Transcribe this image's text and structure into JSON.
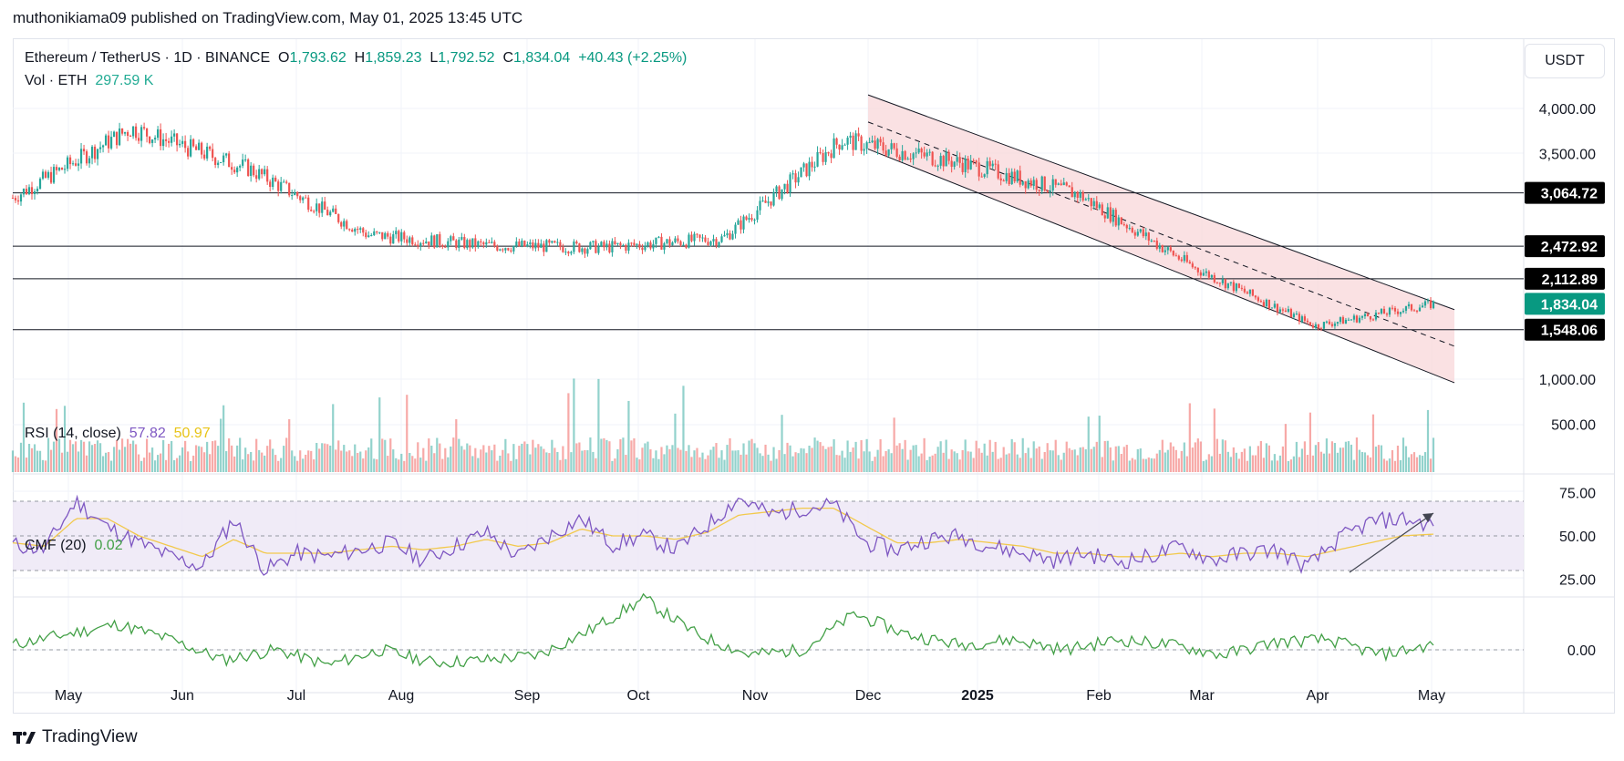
{
  "header": {
    "published": "muthonikiama09 published on TradingView.com, May 01, 2025 13:45 UTC"
  },
  "legend": {
    "symbol": "Ethereum / TetherUS · 1D · BINANCE",
    "open_label": "O",
    "open": "1,793.62",
    "high_label": "H",
    "high": "1,859.23",
    "low_label": "L",
    "low": "1,792.52",
    "close_label": "C",
    "close": "1,834.04",
    "change": "+40.43 (+2.25%)",
    "vol_label": "Vol · ETH",
    "vol_value": "297.59 K"
  },
  "unit_button": "USDT",
  "rsi": {
    "label": "RSI (14, close)",
    "value": "57.82",
    "ma_value": "50.97"
  },
  "cmf": {
    "label": "CMF (20)",
    "value": "0.02"
  },
  "brand": {
    "name": "TradingView"
  },
  "colors": {
    "up": "#26a69a",
    "down": "#ef5350",
    "channel_fill": "#f8d7da",
    "rsi_line": "#7e57c2",
    "rsi_ma": "#f2c94c",
    "rsi_band": "#ede7f6",
    "cmf_line": "#43a047",
    "current_price_tag": "#089981",
    "level_tag": "#000000"
  },
  "chart_data": {
    "type": "line",
    "title": "Ethereum / TetherUS · 1D · BINANCE",
    "x_ticks": [
      "May",
      "Jun",
      "Jul",
      "Aug",
      "Sep",
      "Oct",
      "Nov",
      "Dec",
      "2025",
      "Feb",
      "Mar",
      "Apr",
      "May"
    ],
    "price_axis_ticks": [
      "4,000.00",
      "3,500.00",
      "1,000.00",
      "500.00"
    ],
    "horizontal_levels": [
      3064.72,
      2472.92,
      2112.89,
      1548.06
    ],
    "horizontal_level_labels": [
      "3,064.72",
      "2,472.92",
      "2,112.89",
      "1,548.06"
    ],
    "current_price": 1834.04,
    "current_price_label": "1,834.04",
    "descending_channel": {
      "from": "Dec 2024",
      "to": "May 2025",
      "upper": [
        4150,
        1770
      ],
      "lower": [
        3550,
        960
      ],
      "middle": [
        3850,
        1365
      ]
    },
    "series": [
      {
        "name": "Ethereum / TetherUS",
        "x": [
          "May",
          "Jun",
          "Jul",
          "Aug",
          "Sep",
          "Oct",
          "Nov",
          "Dec",
          "2025",
          "Feb",
          "Mar",
          "Apr",
          "May"
        ],
        "values": [
          3010,
          3780,
          3330,
          2600,
          2480,
          2460,
          2560,
          3650,
          3400,
          3050,
          2220,
          1590,
          1834
        ]
      }
    ],
    "rsi_ticks": [
      "75.00",
      "50.00",
      "25.00"
    ],
    "rsi_series": [
      {
        "name": "RSI (14, close)",
        "values": [
          45,
          42,
          70,
          55,
          46,
          38,
          32,
          60,
          30,
          40,
          38,
          42,
          46,
          36,
          44,
          52,
          38,
          50,
          60,
          45,
          50,
          42,
          56,
          72,
          62,
          66,
          68,
          46,
          42,
          48,
          50,
          44,
          40,
          36,
          40,
          35,
          38,
          44,
          36,
          40,
          42,
          32,
          48,
          58,
          60,
          56
        ]
      },
      {
        "name": "RSI MA",
        "values": [
          46,
          44,
          60,
          60,
          50,
          44,
          38,
          48,
          40,
          40,
          40,
          42,
          44,
          42,
          44,
          48,
          44,
          46,
          54,
          50,
          50,
          48,
          52,
          62,
          64,
          66,
          66,
          56,
          46,
          46,
          48,
          46,
          44,
          40,
          40,
          38,
          38,
          40,
          38,
          40,
          40,
          38,
          42,
          46,
          50,
          51
        ]
      }
    ],
    "cmf_ticks": [
      "0.00"
    ],
    "cmf_series": [
      {
        "name": "CMF (20)",
        "values": [
          0.02,
          0.06,
          0.1,
          0.04,
          -0.04,
          0.0,
          -0.06,
          0.0,
          -0.05,
          -0.04,
          -0.02,
          0.08,
          0.2,
          0.06,
          -0.02,
          0.0,
          0.14,
          0.06,
          0.02,
          0.04,
          0.0,
          0.04,
          0.02,
          -0.02,
          0.03,
          0.04,
          -0.02,
          0.02
        ]
      }
    ],
    "grid": true,
    "legend_position": "top-left"
  }
}
